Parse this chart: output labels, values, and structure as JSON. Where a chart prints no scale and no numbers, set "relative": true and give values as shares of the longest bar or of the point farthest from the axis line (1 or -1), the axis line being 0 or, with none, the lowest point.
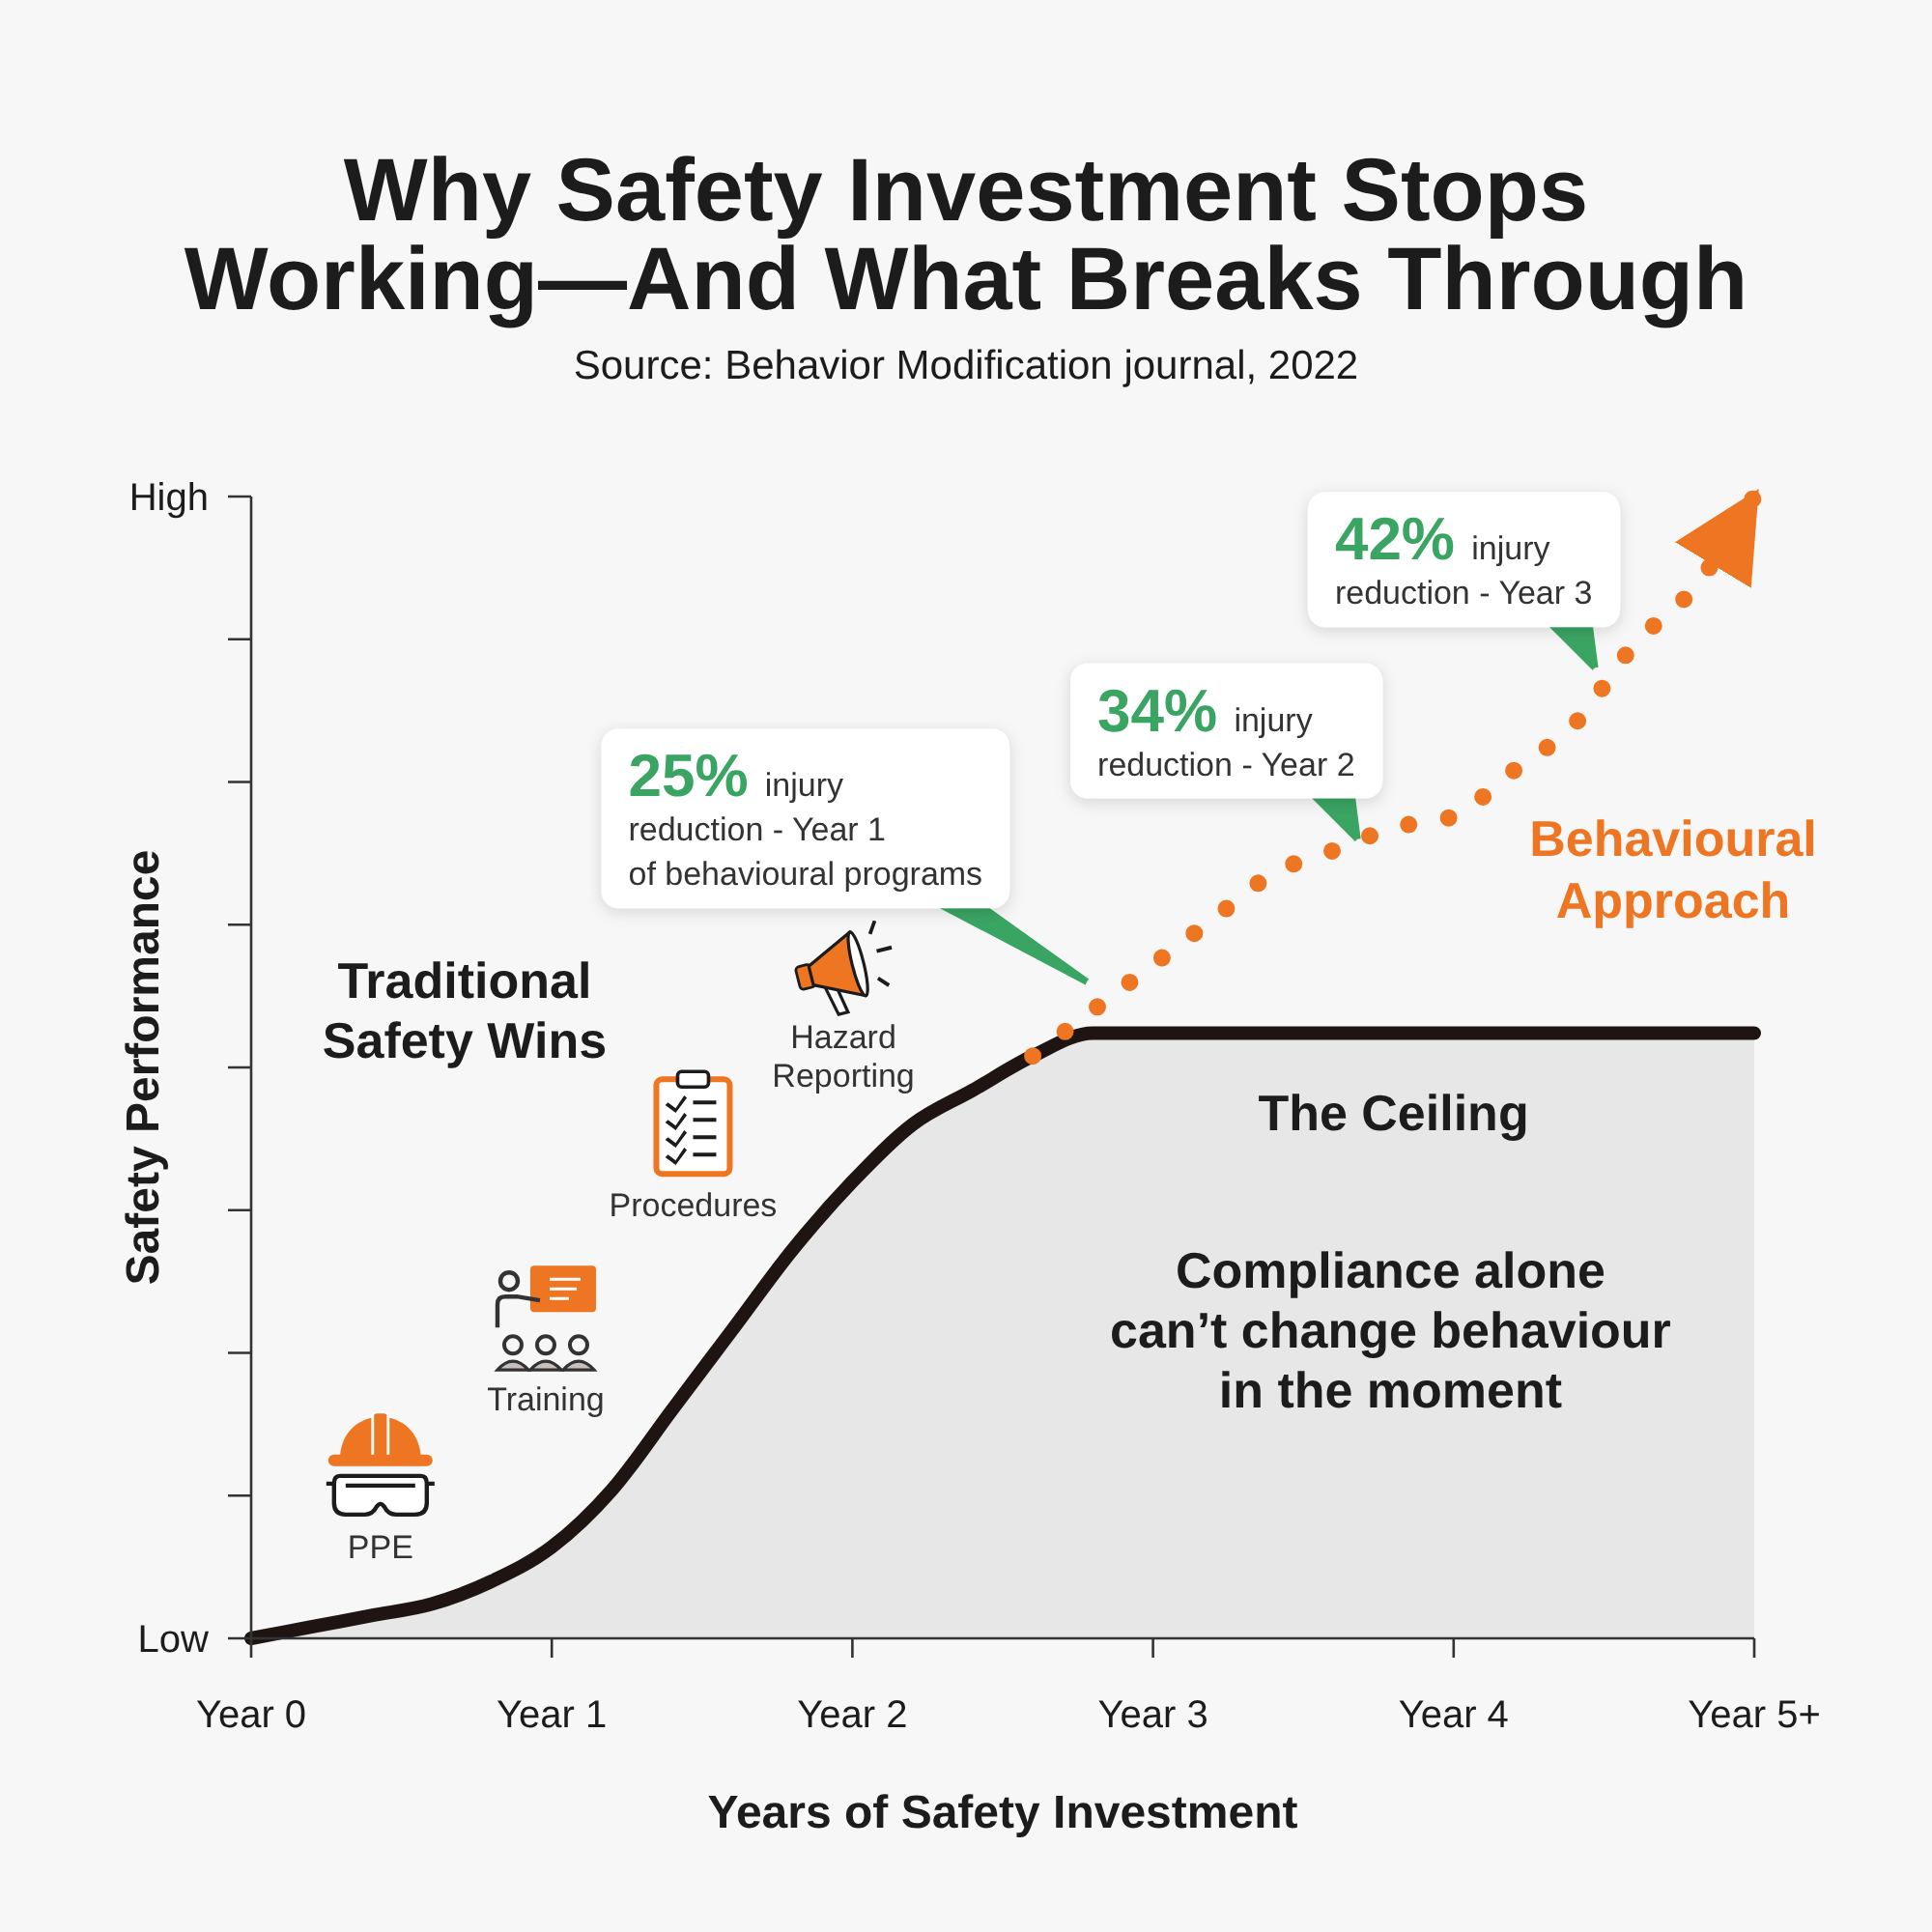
{
  "chart_data": {
    "type": "line",
    "title": "Why Safety Investment Stops Working—And What Breaks Through",
    "subtitle": "Source: Behavior Modification journal, 2022",
    "xlabel": "Years of Safety Investment",
    "ylabel": "Safety Performance",
    "relative": true,
    "categories": [
      "Year 0",
      null,
      null,
      null,
      null,
      "Year 1",
      null,
      null,
      null,
      null,
      "Year 2",
      null,
      null,
      null,
      null,
      "Year 3",
      null,
      null,
      null,
      null,
      "Year 4",
      null,
      null,
      null,
      null,
      "Year 5+"
    ],
    "series": [
      {
        "type": "area",
        "color": "#1e1412",
        "line_style": "solid",
        "values": [
          0,
          0.01,
          0.02,
          0.03,
          0.05,
          0.08,
          0.13,
          0.2,
          0.27,
          0.34,
          0.4,
          0.45,
          0.48,
          0.51,
          0.53,
          0.53,
          0.53,
          0.53,
          0.53,
          0.53,
          0.53,
          0.53,
          0.53,
          0.53,
          0.53,
          0.53
        ]
      },
      {
        "name": "Behavioural Approach",
        "color": "#ee7623",
        "line_style": "dotted",
        "values": [
          null,
          null,
          null,
          null,
          null,
          null,
          null,
          null,
          null,
          null,
          null,
          null,
          null,
          0.51,
          0.55,
          0.59,
          0.63,
          0.67,
          0.69,
          0.71,
          0.72,
          0.76,
          0.8,
          0.87,
          0.92,
          1
        ]
      }
    ],
    "annotations": [
      "Traditional\nSafety Wins",
      "PPE",
      "Training",
      "Procedures",
      "Hazard\nReporting",
      "25% injury\nreduction - Year 1\nof behavioural programs",
      "34% injury\nreduction - Year 2",
      "42% injury\nreduction - Year 3",
      "The Ceiling",
      "Compliance alone\ncan’t change behaviour\nin the moment",
      "High",
      "Low"
    ]
  }
}
